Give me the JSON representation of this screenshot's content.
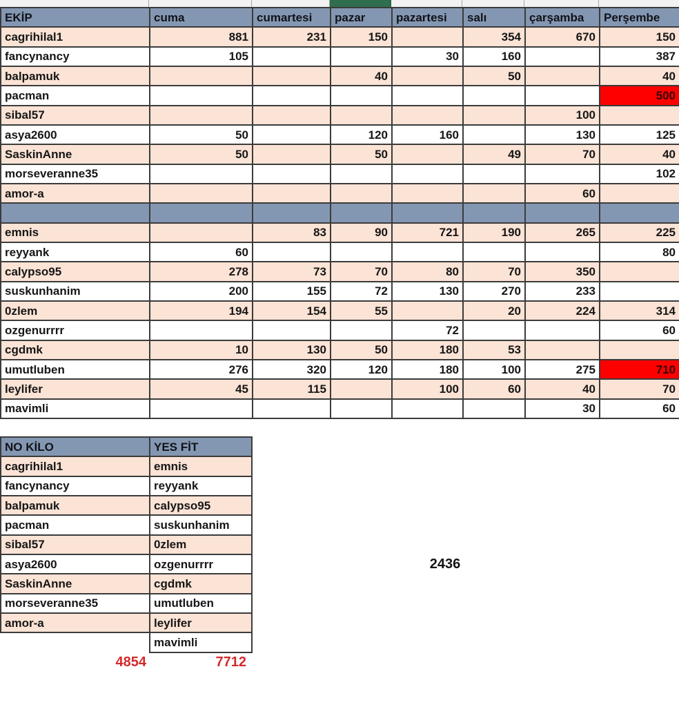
{
  "main_table": {
    "columns": [
      "EKİP",
      "cuma",
      "cumartesi",
      "pazar",
      "pazartesi",
      "salı",
      "çarşamba",
      "Perşembe"
    ],
    "rows": [
      {
        "name": "cagrihilal1",
        "values": [
          "881",
          "231",
          "150",
          "",
          "354",
          "670",
          "150"
        ]
      },
      {
        "name": "fancynancy",
        "values": [
          "105",
          "",
          "",
          "30",
          "160",
          "",
          "387"
        ]
      },
      {
        "name": "balpamuk",
        "values": [
          "",
          "",
          "40",
          "",
          "50",
          "",
          "40"
        ]
      },
      {
        "name": "pacman",
        "values": [
          "",
          "",
          "",
          "",
          "",
          "",
          "500"
        ],
        "highlight": [
          6
        ]
      },
      {
        "name": "sibal57",
        "values": [
          "",
          "",
          "",
          "",
          "",
          "100",
          ""
        ]
      },
      {
        "name": "asya2600",
        "values": [
          "50",
          "",
          "120",
          "160",
          "",
          "130",
          "125"
        ]
      },
      {
        "name": "SaskinAnne",
        "values": [
          "50",
          "",
          "50",
          "",
          "49",
          "70",
          "40"
        ]
      },
      {
        "name": "morseveranne35",
        "values": [
          "",
          "",
          "",
          "",
          "",
          "",
          "102"
        ]
      },
      {
        "name": "amor-a",
        "values": [
          "",
          "",
          "",
          "",
          "",
          "60",
          ""
        ]
      },
      {
        "separator": true
      },
      {
        "name": "emnis",
        "values": [
          "",
          "83",
          "90",
          "721",
          "190",
          "265",
          "225"
        ]
      },
      {
        "name": "reyyank",
        "values": [
          "60",
          "",
          "",
          "",
          "",
          "",
          "80"
        ]
      },
      {
        "name": "calypso95",
        "values": [
          "278",
          "73",
          "70",
          "80",
          "70",
          "350",
          ""
        ]
      },
      {
        "name": "suskunhanim",
        "values": [
          "200",
          "155",
          "72",
          "130",
          "270",
          "233",
          ""
        ]
      },
      {
        "name": "0zlem",
        "values": [
          "194",
          "154",
          "55",
          "",
          "20",
          "224",
          "314"
        ]
      },
      {
        "name": "ozgenurrrr",
        "values": [
          "",
          "",
          "",
          "72",
          "",
          "",
          "60"
        ]
      },
      {
        "name": "cgdmk",
        "values": [
          "10",
          "130",
          "50",
          "180",
          "53",
          "",
          ""
        ]
      },
      {
        "name": "umutluben",
        "values": [
          "276",
          "320",
          "120",
          "180",
          "100",
          "275",
          "710"
        ],
        "highlight": [
          6
        ]
      },
      {
        "name": "leylifer",
        "values": [
          "45",
          "115",
          "",
          "100",
          "60",
          "40",
          "70"
        ]
      },
      {
        "name": "mavimli",
        "values": [
          "",
          "",
          "",
          "",
          "",
          "30",
          "60"
        ]
      }
    ]
  },
  "bottom_table": {
    "columns": [
      "NO KİLO",
      "YES FİT"
    ],
    "rows": [
      [
        "cagrihilal1",
        "emnis"
      ],
      [
        "fancynancy",
        "reyyank"
      ],
      [
        "balpamuk",
        "calypso95"
      ],
      [
        "pacman",
        "suskunhanim"
      ],
      [
        "sibal57",
        "0zlem"
      ],
      [
        "asya2600",
        "ozgenurrrr"
      ],
      [
        "SaskinAnne",
        "cgdmk"
      ],
      [
        "morseveranne35",
        "umutluben"
      ],
      [
        "amor-a",
        "leylifer"
      ],
      [
        null,
        "mavimli"
      ]
    ],
    "totals": {
      "no_kilo": "4854",
      "yes_fit": "7712"
    }
  },
  "standalone_value": "2436",
  "colors": {
    "header_blue": "#8497b2",
    "row_peach": "#fbe3d5",
    "highlight_red": "#fe0000",
    "total_red": "#d42a2a",
    "selection_green": "#2f6e4e",
    "border_dark": "#3b3b3b"
  }
}
